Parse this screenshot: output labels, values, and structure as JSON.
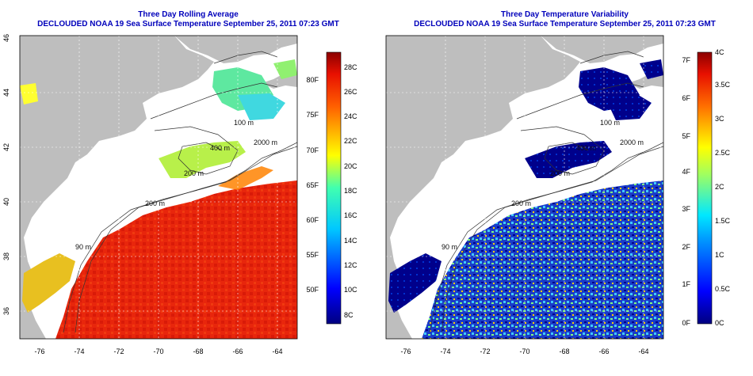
{
  "left_panel": {
    "title": "Three Day Rolling Average",
    "subtitle": "DECLOUDED NOAA 19 Sea Surface Temperature September 25, 2011 07:23 GMT",
    "colorbar_celsius_labels": [
      "28C",
      "26C",
      "24C",
      "22C",
      "20C",
      "18C",
      "16C",
      "14C",
      "12C",
      "10C",
      "8C"
    ],
    "colorbar_fahrenheit_labels": [
      "80F",
      "75F",
      "70F",
      "65F",
      "60F",
      "55F",
      "50F"
    ]
  },
  "right_panel": {
    "title": "Three Day Temperature Variability",
    "subtitle": "DECLOUDED NOAA 19 Sea Surface Temperature September 25, 2011 07:23 GMT",
    "colorbar_celsius_labels": [
      "4C",
      "3.5C",
      "3C",
      "2.5C",
      "2C",
      "1.5C",
      "1C",
      "0.5C",
      "0C"
    ],
    "colorbar_fahrenheit_labels": [
      "7F",
      "6F",
      "5F",
      "4F",
      "3F",
      "2F",
      "1F",
      "0F"
    ]
  },
  "axes": {
    "longitude_labels": [
      "-76",
      "-74",
      "-72",
      "-70",
      "-68",
      "-66",
      "-64"
    ],
    "latitude_labels": [
      "46",
      "44",
      "42",
      "40",
      "38",
      "36"
    ]
  },
  "contour_labels": [
    "100 m",
    "400 m",
    "2000 m",
    "200 m",
    "200 m",
    "90 m"
  ],
  "colors": {
    "land": "#bebebe",
    "cloud_mask": "#ffffff",
    "title_text": "#0000bb",
    "warm_sst": "#e8260c",
    "low_variability": "#00008b"
  }
}
